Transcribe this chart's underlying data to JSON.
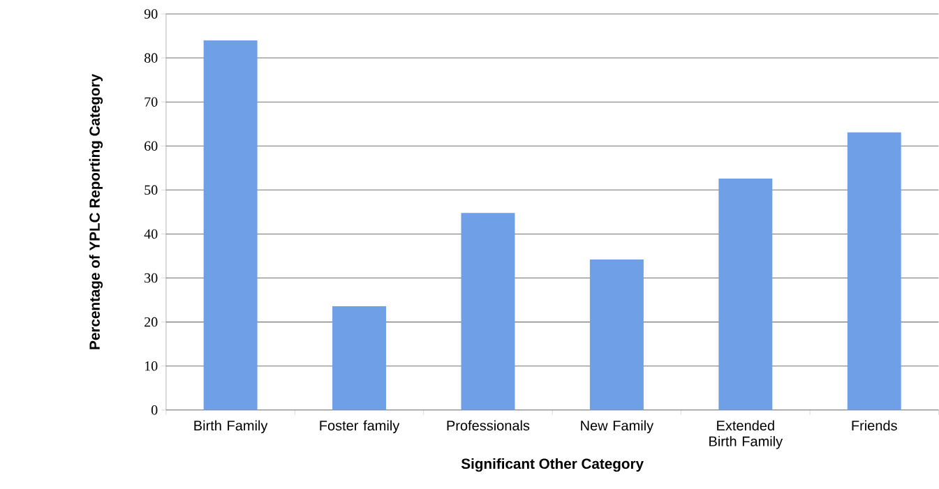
{
  "chart_data": {
    "type": "bar",
    "categories": [
      "Birth Family",
      "Foster family",
      "Professionals",
      "New Family",
      "Extended Birth Family",
      "Friends"
    ],
    "values": [
      84.0,
      23.6,
      44.8,
      34.2,
      52.6,
      63.1
    ],
    "color": "#6f9fe6",
    "xlabel": "Significant Other Category",
    "ylabel": "Percentage of  YPLC Reporting Category",
    "ylim": [
      0,
      90
    ],
    "yticks": [
      0,
      10,
      20,
      30,
      40,
      50,
      60,
      70,
      80,
      90
    ],
    "grid": "y"
  }
}
